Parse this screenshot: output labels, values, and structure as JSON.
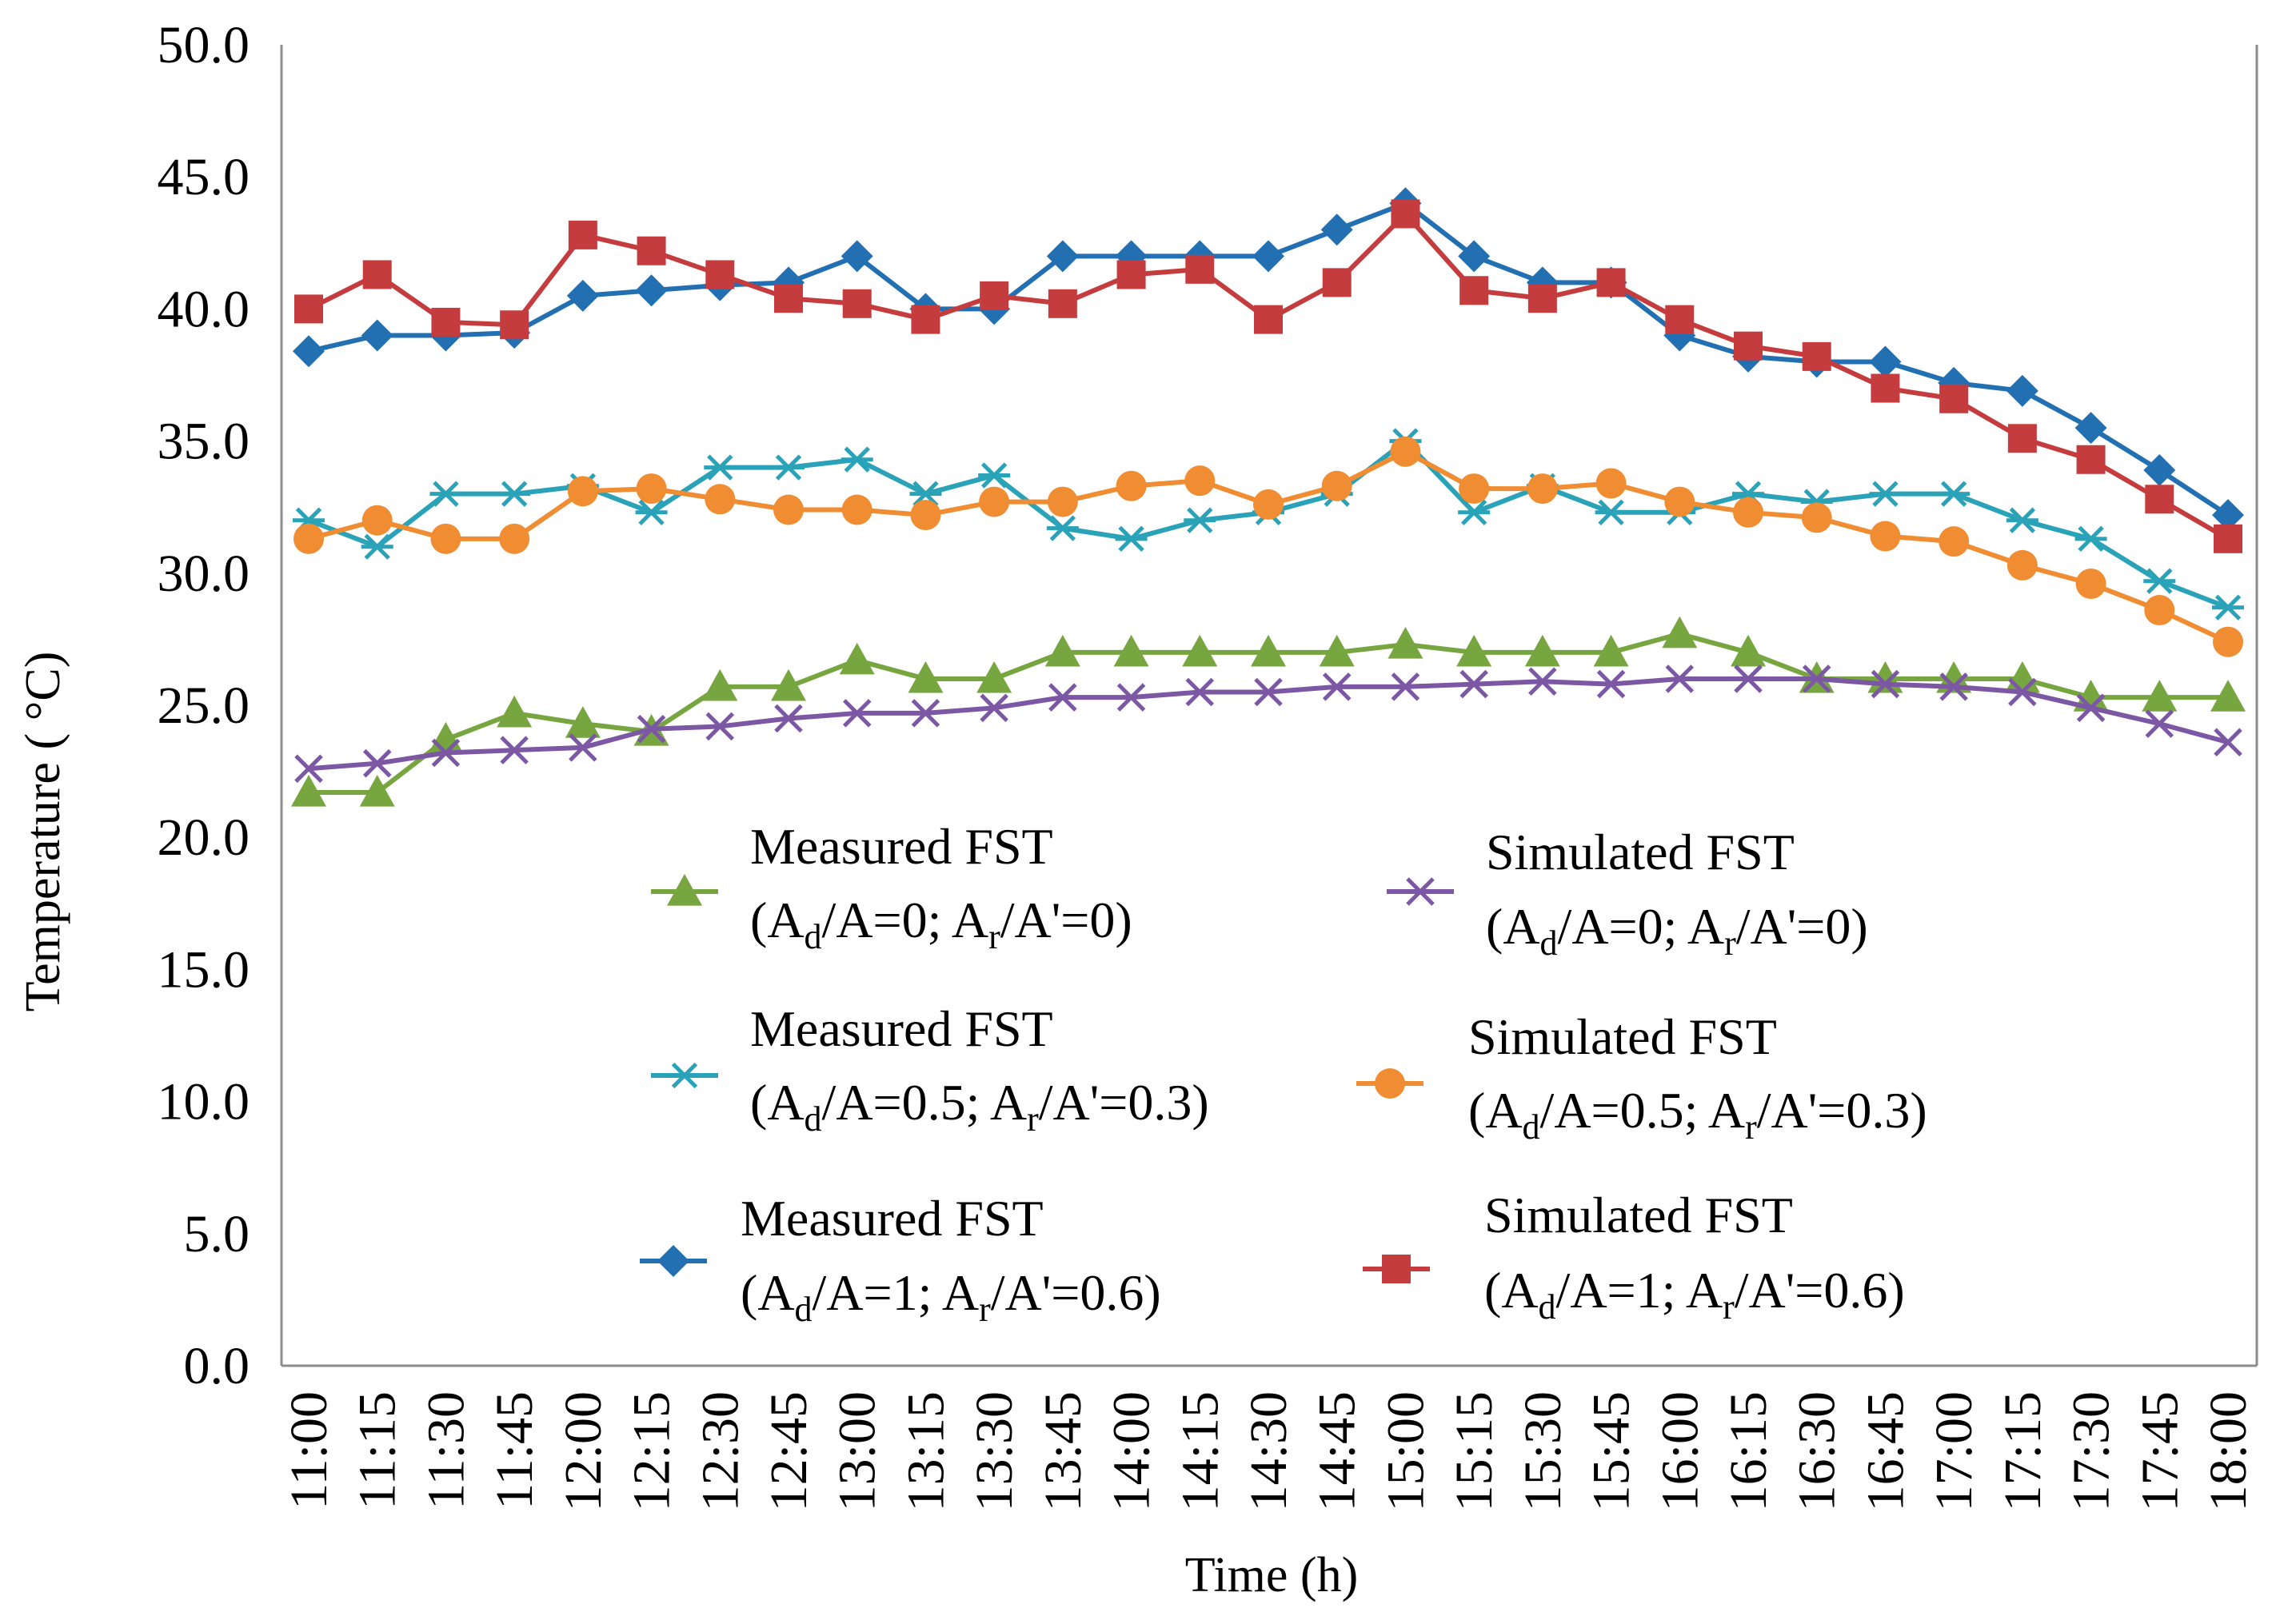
{
  "chart_data": {
    "type": "line",
    "title": "",
    "xlabel": "Time (h)",
    "ylabel": "Temperature ( °C)",
    "ylim": [
      0,
      50
    ],
    "yticks": [
      "0.0",
      "5.0",
      "10.0",
      "15.0",
      "20.0",
      "25.0",
      "30.0",
      "35.0",
      "40.0",
      "45.0",
      "50.0"
    ],
    "categories": [
      "11:00",
      "11:15",
      "11:30",
      "11:45",
      "12:00",
      "12:15",
      "12:30",
      "12:45",
      "13:00",
      "13:15",
      "13:30",
      "13:45",
      "14:00",
      "14:15",
      "14:30",
      "14:45",
      "15:00",
      "15:15",
      "15:30",
      "15:45",
      "16:00",
      "16:15",
      "16:30",
      "16:45",
      "17:00",
      "17:15",
      "17:30",
      "17:45",
      "18:00"
    ],
    "legend_position": "inside-lower-center",
    "series": [
      {
        "name": "Measured FST (Ad/A=0; Ar/A'=0)",
        "label_line1": "Measured FST",
        "label_line2": [
          "(A",
          "d",
          "/A=0; A",
          "r",
          "/A'=0)"
        ],
        "color": "#77a540",
        "marker": "triangle",
        "values": [
          21.7,
          21.7,
          23.7,
          24.7,
          24.3,
          24.0,
          25.7,
          25.7,
          26.7,
          26.0,
          26.0,
          27.0,
          27.0,
          27.0,
          27.0,
          27.0,
          27.3,
          27.0,
          27.0,
          27.0,
          27.7,
          27.0,
          26.0,
          26.0,
          26.0,
          26.0,
          25.3,
          25.3,
          25.3
        ]
      },
      {
        "name": "Measured FST (Ad/A=0.5; Ar/A'=0.3)",
        "label_line1": "Measured FST",
        "label_line2": [
          "(A",
          "d",
          "/A=0.5; A",
          "r",
          "/A'=0.3)"
        ],
        "color": "#2aa2b8",
        "marker": "star",
        "values": [
          32.0,
          31.0,
          33.0,
          33.0,
          33.3,
          32.3,
          34.0,
          34.0,
          34.3,
          33.0,
          33.7,
          31.7,
          31.3,
          32.0,
          32.3,
          33.0,
          35.0,
          32.3,
          33.3,
          32.3,
          32.3,
          33.0,
          32.7,
          33.0,
          33.0,
          32.0,
          31.3,
          29.7,
          28.7
        ]
      },
      {
        "name": "Measured FST (Ad/A=1; Ar/A'=0.6)",
        "label_line1": "Measured FST",
        "label_line2": [
          "(A",
          "d",
          "/A=1; A",
          "r",
          "/A'=0.6)"
        ],
        "color": "#2270b2",
        "marker": "diamond",
        "values": [
          38.4,
          39.0,
          39.0,
          39.1,
          40.5,
          40.7,
          40.9,
          41.0,
          42.0,
          40.0,
          40.0,
          42.0,
          42.0,
          42.0,
          42.0,
          43.0,
          44.0,
          42.0,
          41.0,
          41.0,
          39.0,
          38.2,
          38.0,
          38.0,
          37.2,
          36.9,
          35.5,
          33.9,
          32.2
        ]
      },
      {
        "name": "Simulated FST (Ad/A=0; Ar/A'=0)",
        "label_line1": "Simulated FST",
        "label_line2": [
          "(A",
          "d",
          "/A=0; A",
          "r",
          "/A'=0)"
        ],
        "color": "#7c58a4",
        "marker": "x",
        "values": [
          22.6,
          22.8,
          23.2,
          23.3,
          23.4,
          24.1,
          24.2,
          24.5,
          24.7,
          24.7,
          24.9,
          25.3,
          25.3,
          25.5,
          25.5,
          25.7,
          25.7,
          25.8,
          25.9,
          25.8,
          26.0,
          26.0,
          26.0,
          25.8,
          25.7,
          25.5,
          24.9,
          24.3,
          23.6
        ]
      },
      {
        "name": "Simulated FST (Ad/A=0.5; Ar/A'=0.3)",
        "label_line1": "Simulated FST",
        "label_line2": [
          "(A",
          "d",
          "/A=0.5; A",
          "r",
          "/A'=0.3)"
        ],
        "color": "#f08c32",
        "marker": "circle",
        "values": [
          31.3,
          32.0,
          31.3,
          31.3,
          33.1,
          33.2,
          32.8,
          32.4,
          32.4,
          32.2,
          32.7,
          32.7,
          33.3,
          33.5,
          32.6,
          33.3,
          34.6,
          33.2,
          33.2,
          33.4,
          32.7,
          32.3,
          32.1,
          31.4,
          31.2,
          30.3,
          29.6,
          28.6,
          27.4
        ]
      },
      {
        "name": "Simulated FST (Ad/A=1; Ar/A'=0.6)",
        "label_line1": "Simulated FST",
        "label_line2": [
          "(A",
          "d",
          "/A=1; A",
          "r",
          "/A'=0.6)"
        ],
        "color": "#c43c3e",
        "marker": "square",
        "values": [
          40.0,
          41.3,
          39.5,
          39.4,
          42.8,
          42.2,
          41.3,
          40.4,
          40.2,
          39.6,
          40.5,
          40.2,
          41.3,
          41.5,
          39.6,
          41.0,
          43.6,
          40.7,
          40.4,
          41.0,
          39.6,
          38.6,
          38.2,
          37.0,
          36.6,
          35.1,
          34.3,
          32.8,
          31.3
        ]
      }
    ]
  }
}
